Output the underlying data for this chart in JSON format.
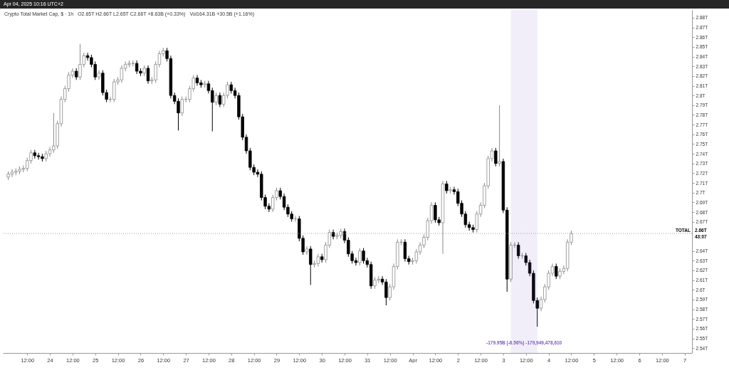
{
  "chart_data": {
    "type": "candlestick",
    "title": "Crypto Total Market Cap, $ · 1h",
    "annotations": [
      "Apr 04, 2025 10:16 UTC+2",
      "O2.65T H2.66T L2.65T C2.66T +8.63B (+0.33%)",
      "Vol164.31B +30.5B (+1.16%)",
      "-179.95B (-6.56%) -179,949,478,610",
      "2.66T",
      "43:07"
    ],
    "x": [
      "2025-03-23T02:00",
      "2025-03-23T04:00",
      "2025-03-23T06:00",
      "2025-03-23T08:00",
      "2025-03-23T10:00",
      "2025-03-23T12:00",
      "2025-03-23T14:00",
      "2025-03-23T16:00",
      "2025-03-23T18:00",
      "2025-03-23T20:00",
      "2025-03-23T22:00",
      "2025-03-24T00:00",
      "2025-03-24T02:00",
      "2025-03-24T04:00",
      "2025-03-24T06:00",
      "2025-03-24T08:00",
      "2025-03-24T10:00",
      "2025-03-24T12:00",
      "2025-03-24T14:00",
      "2025-03-24T16:00",
      "2025-03-24T18:00",
      "2025-03-24T20:00",
      "2025-03-24T22:00",
      "2025-03-25T00:00",
      "2025-03-25T02:00",
      "2025-03-25T04:00",
      "2025-03-25T06:00",
      "2025-03-25T08:00",
      "2025-03-25T10:00",
      "2025-03-25T12:00",
      "2025-03-25T14:00",
      "2025-03-25T16:00",
      "2025-03-25T18:00",
      "2025-03-25T20:00",
      "2025-03-25T22:00",
      "2025-03-26T00:00",
      "2025-03-26T02:00",
      "2025-03-26T04:00",
      "2025-03-26T06:00",
      "2025-03-26T08:00",
      "2025-03-26T10:00",
      "2025-03-26T12:00",
      "2025-03-26T14:00",
      "2025-03-26T16:00",
      "2025-03-26T18:00",
      "2025-03-26T20:00",
      "2025-03-26T22:00",
      "2025-03-27T00:00",
      "2025-03-27T02:00",
      "2025-03-27T04:00",
      "2025-03-27T06:00",
      "2025-03-27T08:00",
      "2025-03-27T10:00",
      "2025-03-27T12:00",
      "2025-03-27T14:00",
      "2025-03-27T16:00",
      "2025-03-27T18:00",
      "2025-03-27T20:00",
      "2025-03-27T22:00",
      "2025-03-28T00:00",
      "2025-03-28T02:00",
      "2025-03-28T04:00",
      "2025-03-28T06:00",
      "2025-03-28T08:00",
      "2025-03-28T10:00",
      "2025-03-28T12:00",
      "2025-03-28T14:00",
      "2025-03-28T16:00",
      "2025-03-28T18:00",
      "2025-03-28T20:00",
      "2025-03-28T22:00",
      "2025-03-29T00:00",
      "2025-03-29T02:00",
      "2025-03-29T04:00",
      "2025-03-29T06:00",
      "2025-03-29T08:00",
      "2025-03-29T10:00",
      "2025-03-29T12:00",
      "2025-03-29T14:00",
      "2025-03-29T16:00",
      "2025-03-29T18:00",
      "2025-03-29T20:00",
      "2025-03-29T22:00",
      "2025-03-30T00:00",
      "2025-03-30T02:00",
      "2025-03-30T04:00",
      "2025-03-30T06:00",
      "2025-03-30T08:00",
      "2025-03-30T10:00",
      "2025-03-30T12:00",
      "2025-03-30T14:00",
      "2025-03-30T16:00",
      "2025-03-30T18:00",
      "2025-03-30T20:00",
      "2025-03-30T22:00",
      "2025-03-31T00:00",
      "2025-03-31T02:00",
      "2025-03-31T04:00",
      "2025-03-31T06:00",
      "2025-03-31T08:00",
      "2025-03-31T10:00",
      "2025-03-31T12:00",
      "2025-03-31T14:00",
      "2025-03-31T16:00",
      "2025-03-31T18:00",
      "2025-03-31T20:00",
      "2025-03-31T22:00",
      "2025-04-01T00:00",
      "2025-04-01T02:00",
      "2025-04-01T04:00",
      "2025-04-01T06:00",
      "2025-04-01T08:00",
      "2025-04-01T10:00",
      "2025-04-01T12:00",
      "2025-04-01T14:00",
      "2025-04-01T16:00",
      "2025-04-01T18:00",
      "2025-04-01T20:00",
      "2025-04-01T22:00",
      "2025-04-02T00:00",
      "2025-04-02T02:00",
      "2025-04-02T04:00",
      "2025-04-02T06:00",
      "2025-04-02T08:00",
      "2025-04-02T10:00",
      "2025-04-02T12:00",
      "2025-04-02T14:00",
      "2025-04-02T16:00",
      "2025-04-02T18:00",
      "2025-04-02T20:00",
      "2025-04-02T22:00",
      "2025-04-03T00:00",
      "2025-04-03T02:00",
      "2025-04-03T04:00",
      "2025-04-03T06:00",
      "2025-04-03T08:00",
      "2025-04-03T10:00",
      "2025-04-03T12:00",
      "2025-04-03T14:00",
      "2025-04-03T16:00",
      "2025-04-03T18:00",
      "2025-04-03T20:00",
      "2025-04-03T22:00",
      "2025-04-04T00:00",
      "2025-04-04T02:00",
      "2025-04-04T04:00",
      "2025-04-04T06:00",
      "2025-04-04T08:00",
      "2025-04-04T10:00",
      "2025-04-04T12:00"
    ],
    "ohlc": [
      [
        2.716,
        2.722,
        2.713,
        2.719
      ],
      [
        2.719,
        2.724,
        2.716,
        2.721
      ],
      [
        2.721,
        2.725,
        2.718,
        2.722
      ],
      [
        2.722,
        2.727,
        2.719,
        2.724
      ],
      [
        2.724,
        2.728,
        2.721,
        2.725
      ],
      [
        2.725,
        2.736,
        2.722,
        2.733
      ],
      [
        2.733,
        2.744,
        2.73,
        2.741
      ],
      [
        2.741,
        2.744,
        2.735,
        2.738
      ],
      [
        2.738,
        2.741,
        2.734,
        2.737
      ],
      [
        2.737,
        2.74,
        2.732,
        2.735
      ],
      [
        2.735,
        2.743,
        2.732,
        2.74
      ],
      [
        2.74,
        2.747,
        2.737,
        2.744
      ],
      [
        2.744,
        2.782,
        2.741,
        2.748
      ],
      [
        2.748,
        2.774,
        2.745,
        2.771
      ],
      [
        2.771,
        2.799,
        2.768,
        2.796
      ],
      [
        2.796,
        2.81,
        2.793,
        2.807
      ],
      [
        2.807,
        2.824,
        2.804,
        2.821
      ],
      [
        2.821,
        2.828,
        2.818,
        2.825
      ],
      [
        2.825,
        2.828,
        2.816,
        2.819
      ],
      [
        2.819,
        2.853,
        2.816,
        2.832
      ],
      [
        2.832,
        2.844,
        2.829,
        2.841
      ],
      [
        2.841,
        2.844,
        2.836,
        2.839
      ],
      [
        2.839,
        2.842,
        2.829,
        2.832
      ],
      [
        2.832,
        2.835,
        2.816,
        2.819
      ],
      [
        2.819,
        2.826,
        2.816,
        2.823
      ],
      [
        2.823,
        2.826,
        2.8,
        2.803
      ],
      [
        2.803,
        2.806,
        2.793,
        2.796
      ],
      [
        2.796,
        2.799,
        2.793,
        2.796
      ],
      [
        2.796,
        2.817,
        2.793,
        2.814
      ],
      [
        2.814,
        2.819,
        2.811,
        2.816
      ],
      [
        2.816,
        2.831,
        2.813,
        2.828
      ],
      [
        2.828,
        2.835,
        2.825,
        2.832
      ],
      [
        2.832,
        2.836,
        2.829,
        2.833
      ],
      [
        2.833,
        2.836,
        2.83,
        2.833
      ],
      [
        2.833,
        2.836,
        2.822,
        2.825
      ],
      [
        2.825,
        2.828,
        2.82,
        2.823
      ],
      [
        2.823,
        2.831,
        2.82,
        2.828
      ],
      [
        2.828,
        2.831,
        2.812,
        2.815
      ],
      [
        2.815,
        2.819,
        2.812,
        2.816
      ],
      [
        2.816,
        2.835,
        2.813,
        2.832
      ],
      [
        2.832,
        2.846,
        2.829,
        2.843
      ],
      [
        2.843,
        2.849,
        2.84,
        2.846
      ],
      [
        2.846,
        2.849,
        2.835,
        2.838
      ],
      [
        2.838,
        2.841,
        2.797,
        2.8
      ],
      [
        2.8,
        2.803,
        2.791,
        2.794
      ],
      [
        2.794,
        2.797,
        2.764,
        2.782
      ],
      [
        2.782,
        2.799,
        2.779,
        2.796
      ],
      [
        2.796,
        2.799,
        2.793,
        2.796
      ],
      [
        2.796,
        2.81,
        2.793,
        2.807
      ],
      [
        2.807,
        2.821,
        2.804,
        2.818
      ],
      [
        2.818,
        2.821,
        2.81,
        2.813
      ],
      [
        2.813,
        2.816,
        2.808,
        2.811
      ],
      [
        2.811,
        2.815,
        2.808,
        2.812
      ],
      [
        2.812,
        2.815,
        2.802,
        2.805
      ],
      [
        2.805,
        2.808,
        2.763,
        2.793
      ],
      [
        2.793,
        2.803,
        2.79,
        2.8
      ],
      [
        2.8,
        2.803,
        2.788,
        2.791
      ],
      [
        2.791,
        2.803,
        2.788,
        2.8
      ],
      [
        2.8,
        2.814,
        2.797,
        2.811
      ],
      [
        2.811,
        2.814,
        2.802,
        2.805
      ],
      [
        2.805,
        2.808,
        2.797,
        2.8
      ],
      [
        2.8,
        2.803,
        2.775,
        2.778
      ],
      [
        2.778,
        2.781,
        2.754,
        2.757
      ],
      [
        2.757,
        2.76,
        2.74,
        2.743
      ],
      [
        2.743,
        2.746,
        2.723,
        2.726
      ],
      [
        2.726,
        2.729,
        2.718,
        2.721
      ],
      [
        2.721,
        2.724,
        2.716,
        2.719
      ],
      [
        2.719,
        2.722,
        2.692,
        2.695
      ],
      [
        2.695,
        2.698,
        2.683,
        2.686
      ],
      [
        2.686,
        2.689,
        2.68,
        2.683
      ],
      [
        2.683,
        2.698,
        2.68,
        2.695
      ],
      [
        2.695,
        2.705,
        2.692,
        2.702
      ],
      [
        2.702,
        2.705,
        2.693,
        2.696
      ],
      [
        2.696,
        2.699,
        2.682,
        2.685
      ],
      [
        2.685,
        2.688,
        2.675,
        2.678
      ],
      [
        2.678,
        2.681,
        2.67,
        2.673
      ],
      [
        2.673,
        2.676,
        2.67,
        2.673
      ],
      [
        2.673,
        2.676,
        2.65,
        2.653
      ],
      [
        2.653,
        2.656,
        2.636,
        2.639
      ],
      [
        2.639,
        2.645,
        2.636,
        2.642
      ],
      [
        2.642,
        2.645,
        2.605,
        2.626
      ],
      [
        2.626,
        2.63,
        2.623,
        2.627
      ],
      [
        2.627,
        2.637,
        2.624,
        2.634
      ],
      [
        2.634,
        2.637,
        2.628,
        2.631
      ],
      [
        2.631,
        2.649,
        2.628,
        2.646
      ],
      [
        2.646,
        2.662,
        2.643,
        2.659
      ],
      [
        2.659,
        2.662,
        2.652,
        2.655
      ],
      [
        2.655,
        2.659,
        2.652,
        2.656
      ],
      [
        2.656,
        2.663,
        2.653,
        2.66
      ],
      [
        2.66,
        2.663,
        2.648,
        2.651
      ],
      [
        2.651,
        2.654,
        2.634,
        2.637
      ],
      [
        2.637,
        2.64,
        2.627,
        2.63
      ],
      [
        2.63,
        2.633,
        2.625,
        2.628
      ],
      [
        2.628,
        2.643,
        2.625,
        2.64
      ],
      [
        2.64,
        2.643,
        2.627,
        2.63
      ],
      [
        2.63,
        2.633,
        2.623,
        2.626
      ],
      [
        2.626,
        2.629,
        2.601,
        2.604
      ],
      [
        2.604,
        2.613,
        2.601,
        2.61
      ],
      [
        2.61,
        2.614,
        2.607,
        2.611
      ],
      [
        2.611,
        2.614,
        2.605,
        2.608
      ],
      [
        2.608,
        2.611,
        2.584,
        2.592
      ],
      [
        2.592,
        2.606,
        2.589,
        2.603
      ],
      [
        2.603,
        2.627,
        2.6,
        2.624
      ],
      [
        2.624,
        2.652,
        2.621,
        2.649
      ],
      [
        2.649,
        2.652,
        2.646,
        2.649
      ],
      [
        2.649,
        2.652,
        2.629,
        2.632
      ],
      [
        2.632,
        2.635,
        2.626,
        2.629
      ],
      [
        2.629,
        2.633,
        2.626,
        2.63
      ],
      [
        2.63,
        2.642,
        2.627,
        2.639
      ],
      [
        2.639,
        2.649,
        2.636,
        2.646
      ],
      [
        2.646,
        2.657,
        2.643,
        2.654
      ],
      [
        2.654,
        2.674,
        2.651,
        2.671
      ],
      [
        2.671,
        2.69,
        2.668,
        2.687
      ],
      [
        2.687,
        2.69,
        2.669,
        2.672
      ],
      [
        2.672,
        2.675,
        2.666,
        2.669
      ],
      [
        2.669,
        2.712,
        2.637,
        2.709
      ],
      [
        2.709,
        2.712,
        2.699,
        2.702
      ],
      [
        2.702,
        2.706,
        2.699,
        2.703
      ],
      [
        2.703,
        2.706,
        2.698,
        2.701
      ],
      [
        2.701,
        2.704,
        2.686,
        2.689
      ],
      [
        2.689,
        2.692,
        2.675,
        2.678
      ],
      [
        2.678,
        2.681,
        2.664,
        2.667
      ],
      [
        2.667,
        2.67,
        2.661,
        2.664
      ],
      [
        2.664,
        2.667,
        2.659,
        2.662
      ],
      [
        2.662,
        2.681,
        2.659,
        2.678
      ],
      [
        2.678,
        2.69,
        2.675,
        2.687
      ],
      [
        2.687,
        2.71,
        2.684,
        2.707
      ],
      [
        2.707,
        2.738,
        2.704,
        2.735
      ],
      [
        2.735,
        2.746,
        2.732,
        2.743
      ],
      [
        2.743,
        2.746,
        2.727,
        2.73
      ],
      [
        2.73,
        2.79,
        2.727,
        2.732
      ],
      [
        2.732,
        2.735,
        2.679,
        2.682
      ],
      [
        2.682,
        2.685,
        2.598,
        2.611
      ],
      [
        2.611,
        2.649,
        2.608,
        2.646
      ],
      [
        2.646,
        2.649,
        2.643,
        2.646
      ],
      [
        2.646,
        2.649,
        2.632,
        2.635
      ],
      [
        2.635,
        2.638,
        2.632,
        2.635
      ],
      [
        2.635,
        2.638,
        2.625,
        2.628
      ],
      [
        2.628,
        2.631,
        2.614,
        2.617
      ],
      [
        2.617,
        2.62,
        2.586,
        2.589
      ],
      [
        2.589,
        2.592,
        2.562,
        2.581
      ],
      [
        2.581,
        2.593,
        2.578,
        2.59
      ],
      [
        2.59,
        2.606,
        2.587,
        2.603
      ],
      [
        2.603,
        2.62,
        2.6,
        2.617
      ],
      [
        2.617,
        2.627,
        2.614,
        2.624
      ],
      [
        2.624,
        2.627,
        2.611,
        2.614
      ],
      [
        2.614,
        2.622,
        2.611,
        2.619
      ],
      [
        2.619,
        2.625,
        2.616,
        2.622
      ],
      [
        2.622,
        2.652,
        2.619,
        2.649
      ],
      [
        2.649,
        2.661,
        2.646,
        2.658
      ]
    ],
    "colors": [
      "#ffffff",
      "#ffffff",
      "#ffffff",
      "#ffffff",
      "#ffffff",
      "#ffffff",
      "#ffffff",
      "#000000",
      "#000000",
      "#000000",
      "#ffffff",
      "#ffffff",
      "#ffffff",
      "#ffffff",
      "#ffffff",
      "#ffffff",
      "#ffffff",
      "#ffffff",
      "#000000",
      "#ffffff",
      "#ffffff",
      "#000000",
      "#000000",
      "#000000",
      "#ffffff",
      "#000000",
      "#000000",
      "#8a8a8a",
      "#ffffff",
      "#ffffff",
      "#ffffff",
      "#ffffff",
      "#ffffff",
      "#8a8a8a",
      "#000000",
      "#000000",
      "#ffffff",
      "#000000",
      "#ffffff",
      "#ffffff",
      "#ffffff",
      "#ffffff",
      "#000000",
      "#000000",
      "#000000",
      "#000000",
      "#ffffff",
      "#8a8a8a",
      "#ffffff",
      "#ffffff",
      "#000000",
      "#000000",
      "#ffffff",
      "#000000",
      "#000000",
      "#ffffff",
      "#000000",
      "#ffffff",
      "#ffffff",
      "#000000",
      "#000000",
      "#000000",
      "#000000",
      "#000000",
      "#000000",
      "#000000",
      "#000000",
      "#000000",
      "#000000",
      "#000000",
      "#ffffff",
      "#ffffff",
      "#000000",
      "#000000",
      "#000000",
      "#000000",
      "#8a8a8a",
      "#000000",
      "#000000",
      "#ffffff",
      "#000000",
      "#ffffff",
      "#ffffff",
      "#000000",
      "#ffffff",
      "#ffffff",
      "#000000",
      "#ffffff",
      "#ffffff",
      "#000000",
      "#000000",
      "#000000",
      "#000000",
      "#ffffff",
      "#000000",
      "#000000",
      "#000000",
      "#ffffff",
      "#ffffff",
      "#000000",
      "#000000",
      "#ffffff",
      "#ffffff",
      "#ffffff",
      "#8a8a8a",
      "#000000",
      "#000000",
      "#ffffff",
      "#ffffff",
      "#ffffff",
      "#ffffff",
      "#ffffff",
      "#ffffff",
      "#000000",
      "#000000",
      "#ffffff",
      "#000000",
      "#ffffff",
      "#000000",
      "#000000",
      "#000000",
      "#000000",
      "#000000",
      "#000000",
      "#ffffff",
      "#ffffff",
      "#ffffff",
      "#ffffff",
      "#ffffff",
      "#000000",
      "#ffffff",
      "#000000",
      "#000000",
      "#ffffff",
      "#8a8a8a",
      "#000000",
      "#8a8a8a",
      "#000000",
      "#000000",
      "#000000",
      "#000000",
      "#ffffff",
      "#ffffff",
      "#ffffff",
      "#ffffff",
      "#000000",
      "#ffffff",
      "#ffffff",
      "#ffffff",
      "#ffffff"
    ],
    "xlim": [
      "2025-03-23T01:00",
      "2025-04-07T02:00"
    ],
    "xticks": [
      {
        "value": "2025-03-23T12:00",
        "label": "12:00"
      },
      {
        "value": "2025-03-24",
        "label": "24"
      },
      {
        "value": "2025-03-24T12:00",
        "label": "12:00"
      },
      {
        "value": "2025-03-25",
        "label": "25"
      },
      {
        "value": "2025-03-25T12:00",
        "label": "12:00"
      },
      {
        "value": "2025-03-26",
        "label": "26"
      },
      {
        "value": "2025-03-26T12:00",
        "label": "12:00"
      },
      {
        "value": "2025-03-27",
        "label": "27"
      },
      {
        "value": "2025-03-27T12:00",
        "label": "12:00"
      },
      {
        "value": "2025-03-28",
        "label": "28"
      },
      {
        "value": "2025-03-28T12:00",
        "label": "12:00"
      },
      {
        "value": "2025-03-29",
        "label": "29"
      },
      {
        "value": "2025-03-29T12:00",
        "label": "12:00"
      },
      {
        "value": "2025-03-30",
        "label": "30"
      },
      {
        "value": "2025-03-30T12:00",
        "label": "12:00"
      },
      {
        "value": "2025-03-31",
        "label": "31"
      },
      {
        "value": "2025-03-31T12:00",
        "label": "12:00"
      },
      {
        "value": "2025-04-01",
        "label": "Apr"
      },
      {
        "value": "2025-04-01T12:00",
        "label": "12:00"
      },
      {
        "value": "2025-04-02",
        "label": "2"
      },
      {
        "value": "2025-04-02T12:00",
        "label": "12:00"
      },
      {
        "value": "2025-04-03",
        "label": "3"
      },
      {
        "value": "2025-04-03T12:00",
        "label": "12:00"
      },
      {
        "value": "2025-04-04",
        "label": "4"
      },
      {
        "value": "2025-04-04T12:00",
        "label": "12:00"
      },
      {
        "value": "2025-04-05",
        "label": "5"
      },
      {
        "value": "2025-04-05T12:00",
        "label": "12:00"
      },
      {
        "value": "2025-04-06",
        "label": "6"
      },
      {
        "value": "2025-04-06T12:00",
        "label": "12:00"
      },
      {
        "value": "2025-04-07",
        "label": "7"
      }
    ],
    "ylim": [
      2.535,
      2.888
    ],
    "yticks": [
      {
        "value": 2.54,
        "label": "2.54T"
      },
      {
        "value": 2.55,
        "label": "2.55T"
      },
      {
        "value": 2.56,
        "label": "2.56T"
      },
      {
        "value": 2.57,
        "label": "2.57T"
      },
      {
        "value": 2.58,
        "label": "2.58T"
      },
      {
        "value": 2.59,
        "label": "2.59T"
      },
      {
        "value": 2.6,
        "label": "2.6T"
      },
      {
        "value": 2.61,
        "label": "2.61T"
      },
      {
        "value": 2.62,
        "label": "2.62T"
      },
      {
        "value": 2.63,
        "label": "2.63T"
      },
      {
        "value": 2.64,
        "label": "2.64T"
      },
      {
        "value": 2.67,
        "label": "2.67T"
      },
      {
        "value": 2.68,
        "label": "2.68T"
      },
      {
        "value": 2.69,
        "label": "2.69T"
      },
      {
        "value": 2.7,
        "label": "2.7T"
      },
      {
        "value": 2.71,
        "label": "2.71T"
      },
      {
        "value": 2.72,
        "label": "2.72T"
      },
      {
        "value": 2.73,
        "label": "2.73T"
      },
      {
        "value": 2.74,
        "label": "2.74T"
      },
      {
        "value": 2.75,
        "label": "2.75T"
      },
      {
        "value": 2.76,
        "label": "2.76T"
      },
      {
        "value": 2.77,
        "label": "2.77T"
      },
      {
        "value": 2.78,
        "label": "2.78T"
      },
      {
        "value": 2.79,
        "label": "2.79T"
      },
      {
        "value": 2.8,
        "label": "2.8T"
      },
      {
        "value": 2.81,
        "label": "2.81T"
      },
      {
        "value": 2.82,
        "label": "2.82T"
      },
      {
        "value": 2.83,
        "label": "2.83T"
      },
      {
        "value": 2.84,
        "label": "2.84T"
      },
      {
        "value": 2.85,
        "label": "2.85T"
      },
      {
        "value": 2.86,
        "label": "2.86T"
      },
      {
        "value": 2.87,
        "label": "2.87T"
      },
      {
        "value": 2.88,
        "label": "2.88T"
      }
    ],
    "ref_lines": [
      {
        "axis": "y",
        "value": 2.658,
        "label": "TOTAL",
        "color": "#9e9e9e",
        "line_style": "dotted"
      }
    ],
    "bands": [
      {
        "axis": "x",
        "from": "2025-04-03T04:00",
        "to": "2025-04-03T18:00",
        "color": "#7e57c2"
      }
    ]
  }
}
